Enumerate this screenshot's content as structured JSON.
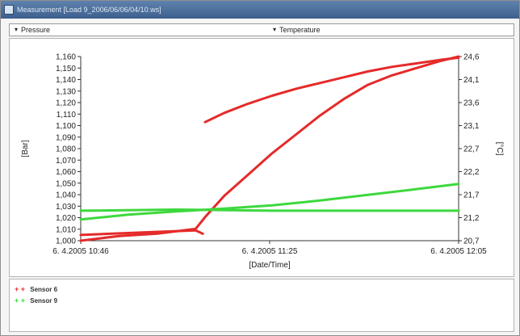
{
  "window": {
    "title": "Measurement [Load 9_2006/06/06/04/10.ws]"
  },
  "selectors": {
    "pressure": "Pressure",
    "temperature": "Temperature"
  },
  "legend": {
    "items": [
      {
        "label": "Sensor 6",
        "color": "#e52a2a",
        "marker": "+"
      },
      {
        "label": "Sensor 9",
        "color": "#3ed83e",
        "marker": "+"
      }
    ]
  },
  "chart_data": {
    "type": "line",
    "xlabel": "[Date/Time]",
    "ylabel": "[Bar]",
    "y2label": "[°C]",
    "x_ticks": [
      "6. 4.2005 10:46",
      "6. 4.2005 11:25",
      "6. 4.2005 12:05"
    ],
    "y_ticks": [
      "1,000",
      "1,010",
      "1,020",
      "1,030",
      "1,040",
      "1,050",
      "1,060",
      "1,070",
      "1,080",
      "1,090",
      "1,100",
      "1,110",
      "1,120",
      "1,130",
      "1,140",
      "1,150",
      "1,160"
    ],
    "y2_ticks": [
      "20,7",
      "21,2",
      "21,7",
      "22,2",
      "22,7",
      "23,1",
      "23,6",
      "24,1",
      "24,6"
    ],
    "ylim": [
      1.0,
      1.16
    ],
    "y2lim": [
      20.7,
      24.6
    ],
    "x_range_minutes": [
      0,
      79
    ],
    "grid": false,
    "series": [
      {
        "name": "Sensor 6",
        "axis": "left",
        "color": "#e52a2a",
        "x": [
          0,
          12,
          24,
          25.5,
          26,
          30,
          35,
          40,
          45,
          50,
          55,
          60,
          65,
          70,
          75,
          79
        ],
        "y": [
          1.005,
          1.007,
          1.009,
          1.006,
          1.103,
          1.111,
          1.119,
          1.126,
          1.132,
          1.137,
          1.142,
          1.147,
          1.151,
          1.154,
          1.157,
          1.159
        ]
      },
      {
        "name": "Sensor 6",
        "axis": "right",
        "color": "#e52a2a",
        "x": [
          0,
          8,
          16,
          24,
          26,
          30,
          35,
          40,
          45,
          50,
          55,
          60,
          65,
          70,
          75,
          79
        ],
        "y": [
          20.7,
          20.8,
          20.85,
          20.95,
          21.2,
          21.65,
          22.1,
          22.55,
          22.95,
          23.35,
          23.7,
          24.0,
          24.2,
          24.35,
          24.5,
          24.6
        ]
      },
      {
        "name": "Sensor 9",
        "axis": "right",
        "color": "#3ed83e",
        "x": [
          0,
          10,
          20,
          30,
          40,
          50,
          60,
          70,
          79
        ],
        "y": [
          21.15,
          21.25,
          21.32,
          21.38,
          21.45,
          21.55,
          21.67,
          21.79,
          21.9
        ]
      },
      {
        "name": "Sensor 9",
        "axis": "left",
        "color": "#3ed83e",
        "x": [
          0,
          20,
          40,
          60,
          79
        ],
        "y": [
          1.026,
          1.027,
          1.026,
          1.026,
          1.026
        ]
      }
    ]
  }
}
